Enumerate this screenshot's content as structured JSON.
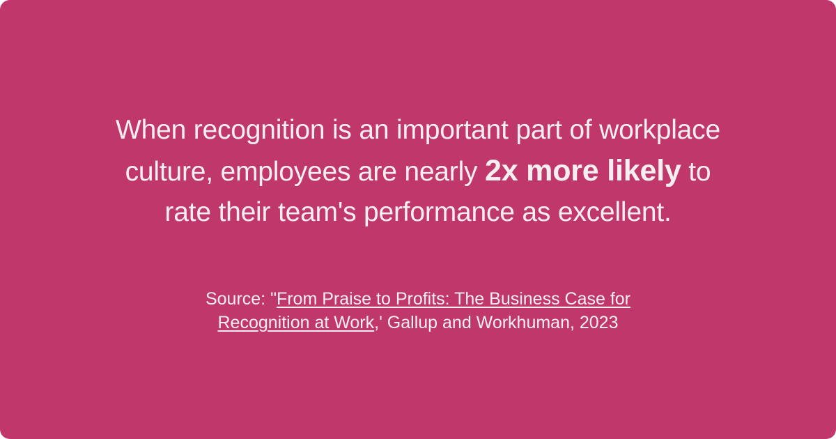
{
  "quote": {
    "line1": "When recognition is an important part of workplace",
    "line2_pre": "culture, employees are nearly ",
    "emphasis": "2x more likely",
    "line2_post": " to",
    "line3": "rate their team's performance as excellent."
  },
  "source": {
    "prefix": "Source: \"",
    "link_line1": "From Praise to Profits: The Business Case for",
    "link_line2": "Recognition at Work",
    "suffix": ",' Gallup and Workhuman, 2023"
  },
  "colors": {
    "background": "#c0386b",
    "text": "#f7eef2"
  }
}
